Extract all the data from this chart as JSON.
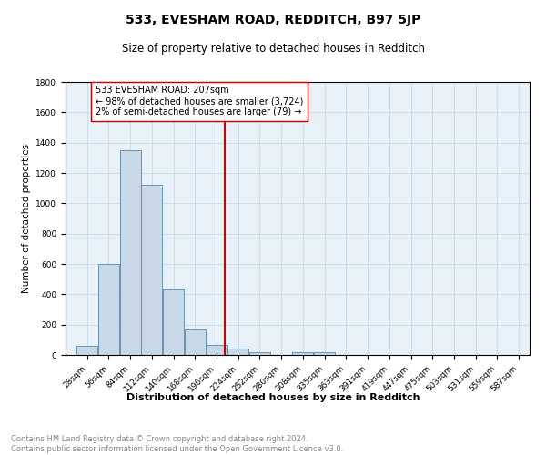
{
  "title": "533, EVESHAM ROAD, REDDITCH, B97 5JP",
  "subtitle": "Size of property relative to detached houses in Redditch",
  "xlabel": "Distribution of detached houses by size in Redditch",
  "ylabel": "Number of detached properties",
  "footnote": "Contains HM Land Registry data © Crown copyright and database right 2024.\nContains public sector information licensed under the Open Government Licence v3.0.",
  "bar_labels": [
    "28sqm",
    "56sqm",
    "84sqm",
    "112sqm",
    "140sqm",
    "168sqm",
    "196sqm",
    "224sqm",
    "252sqm",
    "280sqm",
    "308sqm",
    "335sqm",
    "363sqm",
    "391sqm",
    "419sqm",
    "447sqm",
    "475sqm",
    "503sqm",
    "531sqm",
    "559sqm",
    "587sqm"
  ],
  "bar_values": [
    60,
    600,
    1350,
    1120,
    430,
    170,
    65,
    40,
    20,
    0,
    20,
    20,
    0,
    0,
    0,
    0,
    0,
    0,
    0,
    0,
    0
  ],
  "bar_color": "#c8d8e8",
  "bar_edge_color": "#5588aa",
  "grid_color": "#ccdde8",
  "bg_color": "#e8f0f8",
  "vline_color": "#cc0000",
  "annotation_text": "533 EVESHAM ROAD: 207sqm\n← 98% of detached houses are smaller (3,724)\n2% of semi-detached houses are larger (79) →",
  "annotation_box_color": "#ffffff",
  "annotation_box_edge": "#cc0000",
  "ylim": [
    0,
    1800
  ],
  "yticks": [
    0,
    200,
    400,
    600,
    800,
    1000,
    1200,
    1400,
    1600,
    1800
  ],
  "bin_width": 28,
  "vline_x_idx": 6,
  "title_fontsize": 10,
  "subtitle_fontsize": 8.5,
  "ylabel_fontsize": 7.5,
  "xlabel_fontsize": 8,
  "tick_fontsize": 6.5,
  "annotation_fontsize": 7,
  "footnote_fontsize": 6,
  "footnote_color": "#888888"
}
